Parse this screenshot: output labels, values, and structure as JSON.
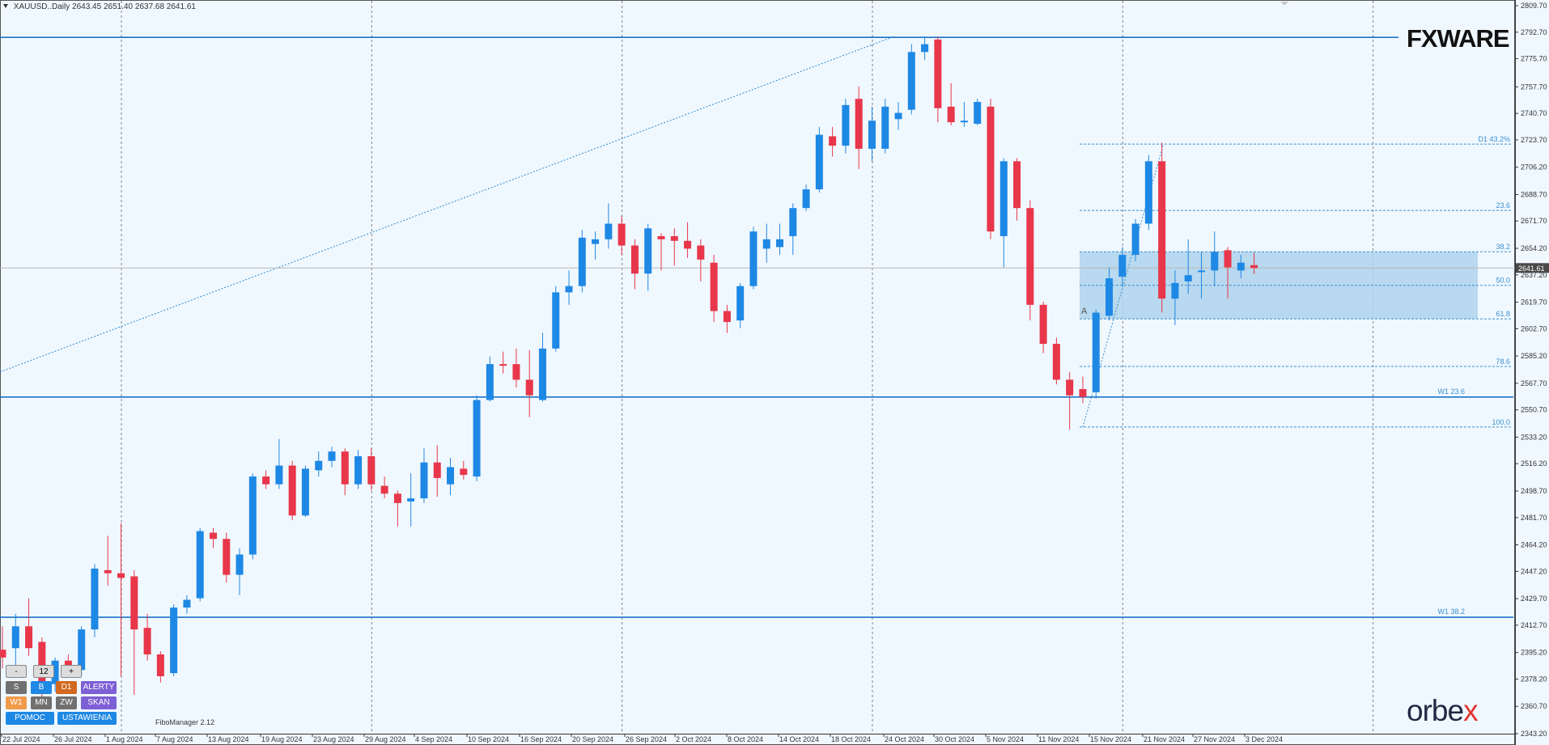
{
  "header": {
    "symbol_label": "XAUUSD..Daily",
    "ohlc": "2643.45 2651.40 2637.68 2641.61"
  },
  "brand": {
    "fxware": "FXWARE",
    "orbex_prefix": "orbe",
    "orbex_x": "x"
  },
  "panel": {
    "minus": "-",
    "count": "12",
    "plus": "+",
    "s": "S",
    "b": "B",
    "d1": "D1",
    "alerty": "ALERTY",
    "w1": "W1",
    "mn": "MN",
    "zw": "ZW",
    "skan": "SKAN",
    "pomoc": "POMOC",
    "ustawienia": "USTAWIENIA",
    "fibo_manager": "FiboManager 2.12"
  },
  "colors": {
    "bull": "#1e88e5",
    "bear": "#e8364a",
    "level": "#1a73c7",
    "fib": "#3a8fd0",
    "zone": "#aed4ec",
    "background": "#f0f8ff"
  },
  "chart_data": {
    "type": "candlestick",
    "symbol": "XAUUSD",
    "timeframe": "Daily",
    "ylim": [
      2343.2,
      2809.7
    ],
    "y_ticks": [
      2809.7,
      2792.7,
      2775.7,
      2757.7,
      2740.7,
      2723.7,
      2706.2,
      2688.7,
      2671.7,
      2654.2,
      2637.2,
      2619.7,
      2602.7,
      2585.2,
      2567.7,
      2550.7,
      2533.2,
      2516.2,
      2498.7,
      2481.7,
      2464.2,
      2447.2,
      2429.7,
      2412.7,
      2395.2,
      2378.2,
      2360.7,
      2343.2
    ],
    "x_labels": [
      "22 Jul 2024",
      "26 Jul 2024",
      "1 Aug 2024",
      "7 Aug 2024",
      "13 Aug 2024",
      "19 Aug 2024",
      "23 Aug 2024",
      "29 Aug 2024",
      "4 Sep 2024",
      "10 Sep 2024",
      "16 Sep 2024",
      "20 Sep 2024",
      "26 Sep 2024",
      "2 Oct 2024",
      "8 Oct 2024",
      "14 Oct 2024",
      "18 Oct 2024",
      "24 Oct 2024",
      "30 Oct 2024",
      "5 Nov 2024",
      "11 Nov 2024",
      "15 Nov 2024",
      "21 Nov 2024",
      "27 Nov 2024",
      "3 Dec 2024"
    ],
    "current_price": 2641.61,
    "candles": [
      {
        "o": 2397,
        "h": 2412,
        "l": 2385,
        "c": 2392
      },
      {
        "o": 2398,
        "h": 2420,
        "l": 2386,
        "c": 2412
      },
      {
        "o": 2412,
        "h": 2430,
        "l": 2393,
        "c": 2398
      },
      {
        "o": 2402,
        "h": 2405,
        "l": 2365,
        "c": 2370
      },
      {
        "o": 2375,
        "h": 2392,
        "l": 2370,
        "c": 2390
      },
      {
        "o": 2390,
        "h": 2394,
        "l": 2380,
        "c": 2383
      },
      {
        "o": 2384,
        "h": 2412,
        "l": 2380,
        "c": 2410
      },
      {
        "o": 2410,
        "h": 2452,
        "l": 2405,
        "c": 2449
      },
      {
        "o": 2448,
        "h": 2470,
        "l": 2438,
        "c": 2446
      },
      {
        "o": 2446,
        "h": 2478,
        "l": 2380,
        "c": 2443
      },
      {
        "o": 2444,
        "h": 2448,
        "l": 2368,
        "c": 2410
      },
      {
        "o": 2411,
        "h": 2420,
        "l": 2390,
        "c": 2394
      },
      {
        "o": 2394,
        "h": 2396,
        "l": 2376,
        "c": 2380
      },
      {
        "o": 2382,
        "h": 2426,
        "l": 2380,
        "c": 2424
      },
      {
        "o": 2424,
        "h": 2432,
        "l": 2420,
        "c": 2429
      },
      {
        "o": 2430,
        "h": 2475,
        "l": 2428,
        "c": 2473
      },
      {
        "o": 2472,
        "h": 2475,
        "l": 2462,
        "c": 2468
      },
      {
        "o": 2468,
        "h": 2472,
        "l": 2440,
        "c": 2445
      },
      {
        "o": 2445,
        "h": 2462,
        "l": 2432,
        "c": 2458
      },
      {
        "o": 2458,
        "h": 2510,
        "l": 2455,
        "c": 2508
      },
      {
        "o": 2508,
        "h": 2512,
        "l": 2500,
        "c": 2503
      },
      {
        "o": 2503,
        "h": 2532,
        "l": 2500,
        "c": 2515
      },
      {
        "o": 2515,
        "h": 2518,
        "l": 2480,
        "c": 2483
      },
      {
        "o": 2483,
        "h": 2515,
        "l": 2482,
        "c": 2513
      },
      {
        "o": 2512,
        "h": 2524,
        "l": 2508,
        "c": 2518
      },
      {
        "o": 2518,
        "h": 2527,
        "l": 2514,
        "c": 2524
      },
      {
        "o": 2524,
        "h": 2526,
        "l": 2496,
        "c": 2503
      },
      {
        "o": 2503,
        "h": 2525,
        "l": 2500,
        "c": 2521
      },
      {
        "o": 2521,
        "h": 2526,
        "l": 2499,
        "c": 2503
      },
      {
        "o": 2502,
        "h": 2508,
        "l": 2494,
        "c": 2497
      },
      {
        "o": 2497,
        "h": 2499,
        "l": 2476,
        "c": 2491
      },
      {
        "o": 2492,
        "h": 2510,
        "l": 2476,
        "c": 2494
      },
      {
        "o": 2494,
        "h": 2526,
        "l": 2491,
        "c": 2517
      },
      {
        "o": 2517,
        "h": 2528,
        "l": 2495,
        "c": 2507
      },
      {
        "o": 2503,
        "h": 2520,
        "l": 2496,
        "c": 2514
      },
      {
        "o": 2513,
        "h": 2518,
        "l": 2506,
        "c": 2509
      },
      {
        "o": 2508,
        "h": 2560,
        "l": 2505,
        "c": 2557
      },
      {
        "o": 2557,
        "h": 2585,
        "l": 2556,
        "c": 2580
      },
      {
        "o": 2580,
        "h": 2588,
        "l": 2574,
        "c": 2579
      },
      {
        "o": 2580,
        "h": 2590,
        "l": 2565,
        "c": 2570
      },
      {
        "o": 2570,
        "h": 2589,
        "l": 2546,
        "c": 2560
      },
      {
        "o": 2557,
        "h": 2600,
        "l": 2556,
        "c": 2590
      },
      {
        "o": 2590,
        "h": 2630,
        "l": 2588,
        "c": 2626
      },
      {
        "o": 2626,
        "h": 2640,
        "l": 2618,
        "c": 2630
      },
      {
        "o": 2630,
        "h": 2666,
        "l": 2626,
        "c": 2661
      },
      {
        "o": 2657,
        "h": 2665,
        "l": 2647,
        "c": 2660
      },
      {
        "o": 2660,
        "h": 2683,
        "l": 2654,
        "c": 2670
      },
      {
        "o": 2670,
        "h": 2675,
        "l": 2650,
        "c": 2656
      },
      {
        "o": 2656,
        "h": 2660,
        "l": 2628,
        "c": 2638
      },
      {
        "o": 2638,
        "h": 2670,
        "l": 2627,
        "c": 2667
      },
      {
        "o": 2662,
        "h": 2664,
        "l": 2640,
        "c": 2660
      },
      {
        "o": 2662,
        "h": 2667,
        "l": 2643,
        "c": 2659
      },
      {
        "o": 2659,
        "h": 2671,
        "l": 2648,
        "c": 2654
      },
      {
        "o": 2656,
        "h": 2660,
        "l": 2633,
        "c": 2647
      },
      {
        "o": 2645,
        "h": 2650,
        "l": 2607,
        "c": 2614
      },
      {
        "o": 2614,
        "h": 2618,
        "l": 2600,
        "c": 2607
      },
      {
        "o": 2608,
        "h": 2632,
        "l": 2603,
        "c": 2630
      },
      {
        "o": 2630,
        "h": 2668,
        "l": 2628,
        "c": 2665
      },
      {
        "o": 2654,
        "h": 2670,
        "l": 2645,
        "c": 2660
      },
      {
        "o": 2655,
        "h": 2670,
        "l": 2650,
        "c": 2660
      },
      {
        "o": 2662,
        "h": 2683,
        "l": 2650,
        "c": 2680
      },
      {
        "o": 2680,
        "h": 2695,
        "l": 2678,
        "c": 2692
      },
      {
        "o": 2692,
        "h": 2732,
        "l": 2690,
        "c": 2727
      },
      {
        "o": 2726,
        "h": 2732,
        "l": 2713,
        "c": 2720
      },
      {
        "o": 2720,
        "h": 2750,
        "l": 2715,
        "c": 2746
      },
      {
        "o": 2750,
        "h": 2758,
        "l": 2705,
        "c": 2718
      },
      {
        "o": 2718,
        "h": 2745,
        "l": 2710,
        "c": 2736
      },
      {
        "o": 2718,
        "h": 2750,
        "l": 2715,
        "c": 2745
      },
      {
        "o": 2737,
        "h": 2748,
        "l": 2730,
        "c": 2741
      },
      {
        "o": 2743,
        "h": 2785,
        "l": 2740,
        "c": 2780
      },
      {
        "o": 2780,
        "h": 2790,
        "l": 2775,
        "c": 2785
      },
      {
        "o": 2788,
        "h": 2790,
        "l": 2735,
        "c": 2744
      },
      {
        "o": 2745,
        "h": 2760,
        "l": 2733,
        "c": 2735
      },
      {
        "o": 2735,
        "h": 2748,
        "l": 2732,
        "c": 2736
      },
      {
        "o": 2734,
        "h": 2750,
        "l": 2733,
        "c": 2748
      },
      {
        "o": 2745,
        "h": 2750,
        "l": 2660,
        "c": 2665
      },
      {
        "o": 2662,
        "h": 2712,
        "l": 2642,
        "c": 2710
      },
      {
        "o": 2710,
        "h": 2712,
        "l": 2672,
        "c": 2680
      },
      {
        "o": 2680,
        "h": 2685,
        "l": 2608,
        "c": 2618
      },
      {
        "o": 2618,
        "h": 2620,
        "l": 2587,
        "c": 2593
      },
      {
        "o": 2593,
        "h": 2597,
        "l": 2567,
        "c": 2570
      },
      {
        "o": 2570,
        "h": 2575,
        "l": 2538,
        "c": 2560
      },
      {
        "o": 2564,
        "h": 2572,
        "l": 2555,
        "c": 2559
      },
      {
        "o": 2562,
        "h": 2615,
        "l": 2558,
        "c": 2613
      },
      {
        "o": 2611,
        "h": 2642,
        "l": 2608,
        "c": 2635
      },
      {
        "o": 2636,
        "h": 2655,
        "l": 2630,
        "c": 2650
      },
      {
        "o": 2650,
        "h": 2673,
        "l": 2646,
        "c": 2670
      },
      {
        "o": 2670,
        "h": 2714,
        "l": 2666,
        "c": 2710
      },
      {
        "o": 2710,
        "h": 2722,
        "l": 2613,
        "c": 2622
      },
      {
        "o": 2622,
        "h": 2640,
        "l": 2605,
        "c": 2632
      },
      {
        "o": 2633,
        "h": 2660,
        "l": 2625,
        "c": 2637
      },
      {
        "o": 2640,
        "h": 2652,
        "l": 2622,
        "c": 2640
      },
      {
        "o": 2640,
        "h": 2665,
        "l": 2630,
        "c": 2652
      },
      {
        "o": 2653,
        "h": 2655,
        "l": 2622,
        "c": 2642
      },
      {
        "o": 2640,
        "h": 2650,
        "l": 2635,
        "c": 2645
      },
      {
        "o": 2643.45,
        "h": 2651.4,
        "l": 2637.68,
        "c": 2641.61
      }
    ],
    "horizontal_levels": [
      {
        "price": 2789.4
      },
      {
        "price": 2558.9,
        "label": "W1 23.6"
      },
      {
        "price": 2417.8,
        "label": "W1 38.2"
      }
    ],
    "fib_levels": [
      {
        "label": "D1 43.2%",
        "price": 2721.0
      },
      {
        "label": "23.6",
        "price": 2678.5
      },
      {
        "label": "38.2",
        "price": 2652.0
      },
      {
        "label": "50.0",
        "price": 2630.5
      },
      {
        "label": "61.8",
        "price": 2609.0
      },
      {
        "label": "78.6",
        "price": 2578.5
      },
      {
        "label": "100.0",
        "price": 2539.7
      }
    ],
    "zone": {
      "from": 2609.0,
      "to": 2652.0,
      "label": "A"
    }
  }
}
